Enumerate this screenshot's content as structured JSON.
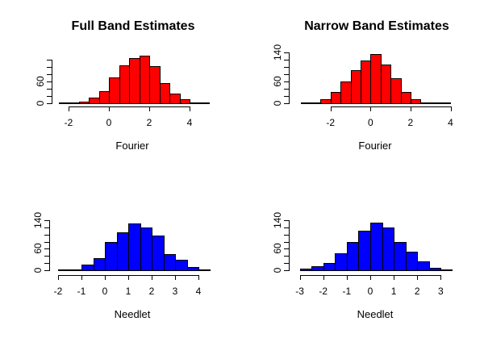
{
  "figure": {
    "background": "#ffffff",
    "text_color": "#000000",
    "layout": "2x2 histogram grid"
  },
  "chart_data": [
    {
      "type": "bar",
      "subtype": "histogram",
      "panel": "top-left",
      "title": "Full Band Estimates",
      "xlabel": "Fourier",
      "ylabel": "",
      "bar_color": "#ff0000",
      "bar_border_color": "#000000",
      "bin_start": -1.5,
      "bin_width": 0.5,
      "counts": [
        5,
        15,
        34,
        72,
        104,
        125,
        131,
        103,
        55,
        27,
        10
      ],
      "x_ticks": [
        -2,
        0,
        2,
        4
      ],
      "y_ticks": [
        0,
        20,
        40,
        60,
        80,
        100,
        120
      ],
      "y_labeled_ticks": [
        0,
        60
      ],
      "xlim": [
        -2.5,
        5
      ],
      "ylim": [
        0,
        140
      ],
      "grid": false
    },
    {
      "type": "bar",
      "subtype": "histogram",
      "panel": "top-right",
      "title": "Narrow Band Estimates",
      "xlabel": "Fourier",
      "ylabel": "",
      "bar_color": "#ff0000",
      "bar_border_color": "#000000",
      "bin_start": -2.5,
      "bin_width": 0.5,
      "counts": [
        10,
        30,
        61,
        90,
        117,
        135,
        107,
        69,
        32,
        10
      ],
      "x_ticks": [
        -2,
        0,
        2,
        4
      ],
      "y_ticks": [
        0,
        20,
        40,
        60,
        80,
        100,
        120,
        140
      ],
      "y_labeled_ticks": [
        0,
        60,
        140
      ],
      "xlim": [
        -3.5,
        4
      ],
      "ylim": [
        0,
        140
      ],
      "grid": false
    },
    {
      "type": "bar",
      "subtype": "histogram",
      "panel": "bottom-left",
      "title": "",
      "xlabel": "Needlet",
      "ylabel": "",
      "bar_color": "#0000ff",
      "bar_border_color": "#000000",
      "bin_start": -1.0,
      "bin_width": 0.5,
      "counts": [
        15,
        34,
        80,
        108,
        133,
        120,
        98,
        46,
        29,
        10
      ],
      "x_ticks": [
        -2,
        -1,
        0,
        1,
        2,
        3,
        4
      ],
      "y_ticks": [
        0,
        20,
        40,
        60,
        80,
        100,
        120,
        140
      ],
      "y_labeled_ticks": [
        0,
        60,
        140
      ],
      "xlim": [
        -2,
        4.5
      ],
      "ylim": [
        0,
        140
      ],
      "grid": false
    },
    {
      "type": "bar",
      "subtype": "histogram",
      "panel": "bottom-right",
      "title": "",
      "xlabel": "Needlet",
      "ylabel": "",
      "bar_color": "#0000ff",
      "bar_border_color": "#000000",
      "bin_start": -3.0,
      "bin_width": 0.5,
      "counts": [
        4,
        11,
        20,
        48,
        79,
        113,
        135,
        122,
        80,
        52,
        25,
        7
      ],
      "x_ticks": [
        -3,
        -2,
        -1,
        0,
        1,
        2,
        3
      ],
      "y_ticks": [
        0,
        20,
        40,
        60,
        80,
        100,
        120,
        140
      ],
      "y_labeled_ticks": [
        0,
        60,
        140
      ],
      "xlim": [
        -3,
        3.5
      ],
      "ylim": [
        0,
        140
      ],
      "grid": false
    }
  ]
}
